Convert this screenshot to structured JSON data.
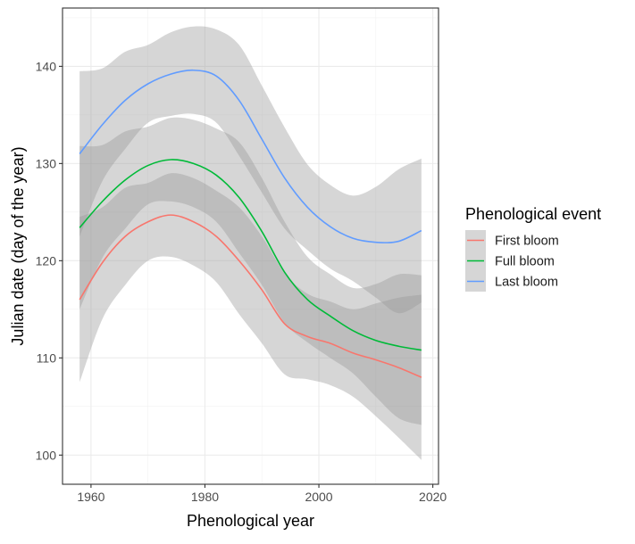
{
  "chart_data": {
    "type": "line",
    "xlabel": "Phenological year",
    "ylabel": "Julian date (day of the year)",
    "xlim": [
      1955,
      2021
    ],
    "ylim": [
      97,
      146
    ],
    "x_ticks": [
      1960,
      1980,
      2000,
      2020
    ],
    "y_ticks": [
      100,
      110,
      120,
      130,
      140
    ],
    "grid": true,
    "legend": {
      "title": "Phenological event",
      "position": "right"
    },
    "series": [
      {
        "name": "First bloom",
        "color": "#F8766D",
        "x": [
          1958,
          1962,
          1966,
          1970,
          1974,
          1978,
          1982,
          1986,
          1990,
          1994,
          1998,
          2002,
          2006,
          2010,
          2014,
          2018
        ],
        "y": [
          116.0,
          119.8,
          122.5,
          124.0,
          124.7,
          124.0,
          122.5,
          120.0,
          117.0,
          113.5,
          112.2,
          111.5,
          110.5,
          109.8,
          109.0,
          108.0
        ],
        "ci_lower": [
          107.5,
          114.0,
          117.5,
          120.0,
          120.4,
          119.5,
          117.8,
          114.5,
          111.5,
          108.3,
          107.8,
          107.2,
          106.0,
          104.0,
          101.8,
          99.5
        ],
        "ci_upper": [
          124.5,
          125.5,
          127.5,
          128.0,
          129.0,
          128.5,
          127.2,
          125.5,
          122.5,
          118.7,
          116.6,
          115.8,
          115.0,
          115.6,
          116.2,
          116.5
        ]
      },
      {
        "name": "Full bloom",
        "color": "#00BA38",
        "x": [
          1958,
          1962,
          1966,
          1970,
          1974,
          1978,
          1982,
          1986,
          1990,
          1994,
          1998,
          2002,
          2006,
          2010,
          2014,
          2018
        ],
        "y": [
          123.4,
          126.1,
          128.3,
          129.8,
          130.4,
          130.0,
          128.8,
          126.5,
          123.0,
          118.8,
          116.0,
          114.3,
          112.8,
          111.8,
          111.2,
          110.8
        ],
        "ci_lower": [
          115.0,
          120.3,
          123.3,
          125.8,
          126.1,
          125.5,
          124.0,
          120.8,
          117.5,
          113.6,
          111.6,
          110.0,
          108.4,
          106.0,
          103.8,
          103.1
        ],
        "ci_upper": [
          131.8,
          131.9,
          133.3,
          133.8,
          134.7,
          134.5,
          133.6,
          132.2,
          128.5,
          124.0,
          120.4,
          118.6,
          117.2,
          117.6,
          118.6,
          118.5
        ]
      },
      {
        "name": "Last bloom",
        "color": "#619CFF",
        "x": [
          1958,
          1962,
          1966,
          1970,
          1974,
          1978,
          1982,
          1986,
          1990,
          1994,
          1998,
          2002,
          2006,
          2010,
          2014,
          2018
        ],
        "y": [
          131.0,
          134.0,
          136.5,
          138.2,
          139.2,
          139.6,
          139.0,
          136.5,
          132.5,
          128.5,
          125.5,
          123.5,
          122.3,
          121.9,
          122.0,
          123.1
        ],
        "ci_lower": [
          122.5,
          128.2,
          131.5,
          134.2,
          134.9,
          135.1,
          134.2,
          130.8,
          127.0,
          123.3,
          121.1,
          119.2,
          117.9,
          116.2,
          114.6,
          115.7
        ],
        "ci_upper": [
          139.5,
          139.8,
          141.5,
          142.2,
          143.5,
          144.1,
          143.8,
          142.2,
          138.0,
          133.7,
          129.9,
          127.8,
          126.7,
          127.6,
          129.4,
          130.5
        ]
      }
    ]
  }
}
